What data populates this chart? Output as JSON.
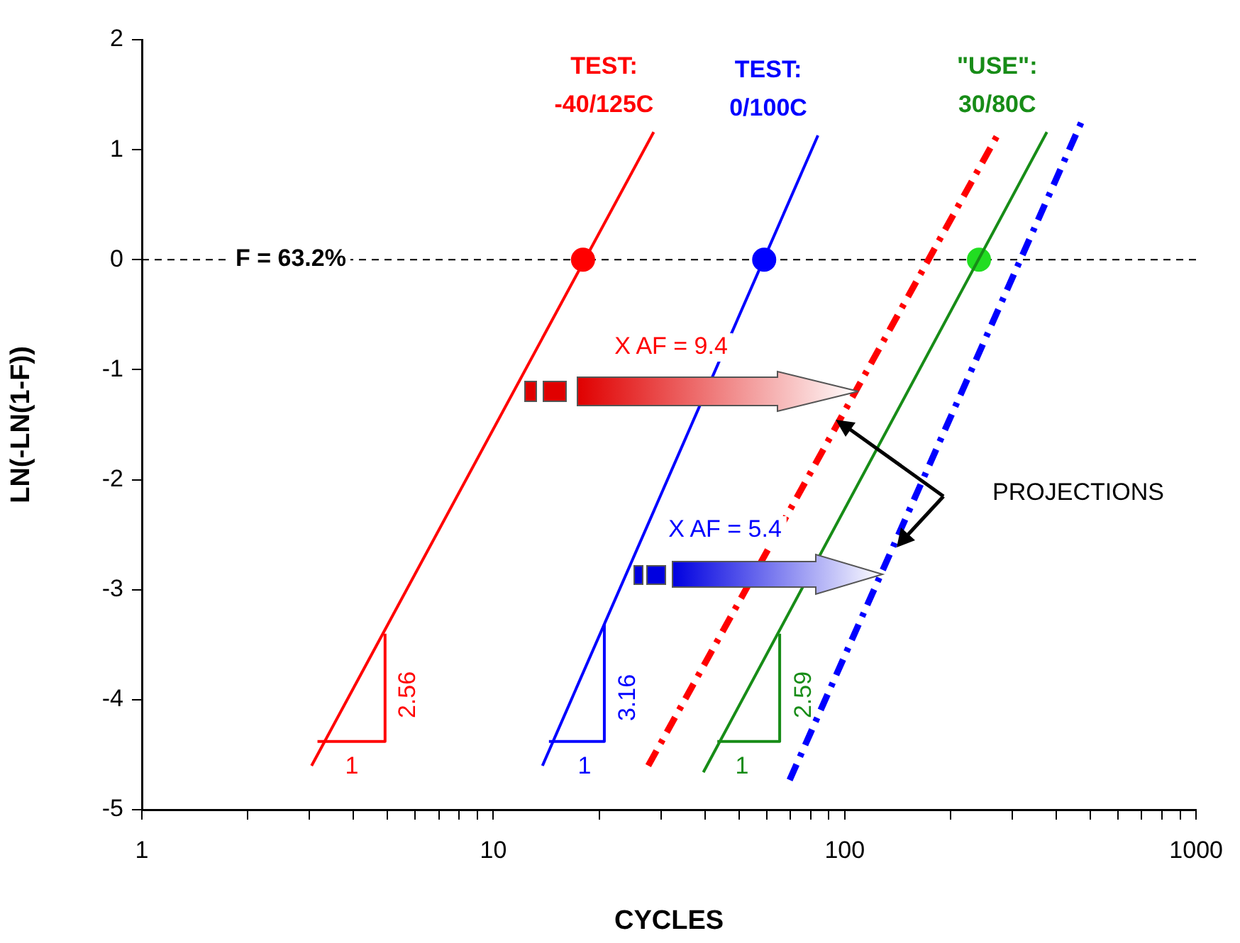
{
  "chart_data": {
    "type": "line",
    "xlabel": "CYCLES",
    "ylabel": "LN(-LN(1-F))",
    "log": "x",
    "xlim": [
      1,
      1000
    ],
    "xticks": [
      1,
      {
        "value": 2,
        "label": null
      },
      {
        "value": 3,
        "label": null
      },
      {
        "value": 4,
        "label": null
      },
      {
        "value": 5,
        "label": null
      },
      {
        "value": 6,
        "label": null
      },
      {
        "value": 7,
        "label": null
      },
      {
        "value": 8,
        "label": null
      },
      {
        "value": 9,
        "label": null
      },
      10,
      {
        "value": 20,
        "label": null
      },
      {
        "value": 30,
        "label": null
      },
      {
        "value": 40,
        "label": null
      },
      {
        "value": 50,
        "label": null
      },
      {
        "value": 60,
        "label": null
      },
      {
        "value": 70,
        "label": null
      },
      {
        "value": 80,
        "label": null
      },
      {
        "value": 90,
        "label": null
      },
      100,
      {
        "value": 200,
        "label": null
      },
      {
        "value": 300,
        "label": null
      },
      {
        "value": 400,
        "label": null
      },
      {
        "value": 500,
        "label": null
      },
      {
        "value": 600,
        "label": null
      },
      {
        "value": 700,
        "label": null
      },
      {
        "value": 800,
        "label": null
      },
      {
        "value": 900,
        "label": null
      },
      1000
    ],
    "ylim": [
      -5,
      2
    ],
    "yticks": [
      -5,
      -4,
      -3,
      -2,
      -1,
      0,
      1,
      2
    ],
    "grid": false,
    "legend": false,
    "marker": "none",
    "series": [
      {
        "name": "TEST:\n-40/125C",
        "color": "#ff0000",
        "line_style": "solid",
        "x": [
          3.04,
          28.6
        ],
        "values": [
          -4.6,
          1.16
        ]
      },
      {
        "name": "TEST:\n0/100C",
        "color": "#0000ff",
        "line_style": "solid",
        "x": [
          13.8,
          83.9
        ],
        "values": [
          -4.6,
          1.13
        ]
      },
      {
        "name": "\"USE\":\n30/80C",
        "color": "#178c17",
        "line_style": "solid",
        "x": [
          39.6,
          376
        ],
        "values": [
          -4.66,
          1.16
        ]
      },
      {
        "color": "#ff0000",
        "line_style": "dashed",
        "x": [
          27.6,
          275
        ],
        "values": [
          -4.6,
          1.16
        ]
      },
      {
        "color": "#0000ff",
        "line_style": "dashed",
        "x": [
          69.7,
          479
        ],
        "values": [
          -4.73,
          1.3
        ]
      },
      {
        "type": "scatter",
        "color": "#ff0000",
        "marker": "circle",
        "x": [
          18
        ],
        "values": [
          0
        ]
      },
      {
        "type": "scatter",
        "color": "#0000ff",
        "marker": "circle",
        "x": [
          59
        ],
        "values": [
          0
        ]
      },
      {
        "type": "scatter",
        "color": "#22dd22",
        "marker": "circle",
        "x": [
          241
        ],
        "values": [
          0
        ]
      },
      {
        "color": "#ff0000",
        "line_style": "solid",
        "x": [
          3.16,
          4.92,
          4.92
        ],
        "values": [
          -4.38,
          -4.38,
          -3.4
        ]
      },
      {
        "color": "#0000ff",
        "line_style": "solid",
        "x": [
          14.4,
          20.7,
          20.7
        ],
        "values": [
          -4.38,
          -4.38,
          -3.31
        ]
      },
      {
        "color": "#178c17",
        "line_style": "solid",
        "x": [
          43.4,
          65.3,
          65.3
        ],
        "values": [
          -4.38,
          -4.38,
          -3.4
        ]
      }
    ],
    "ref_lines": [
      {
        "axis": "y",
        "value": 0,
        "color": "#000000",
        "line_style": "dashed"
      }
    ],
    "annotations": [
      "X AF = 9.4",
      "X AF = 5.4",
      "PROJECTIONS",
      "2.56",
      "1",
      "3.16",
      "1",
      "2.59",
      "1",
      "F = 63.2%"
    ]
  }
}
